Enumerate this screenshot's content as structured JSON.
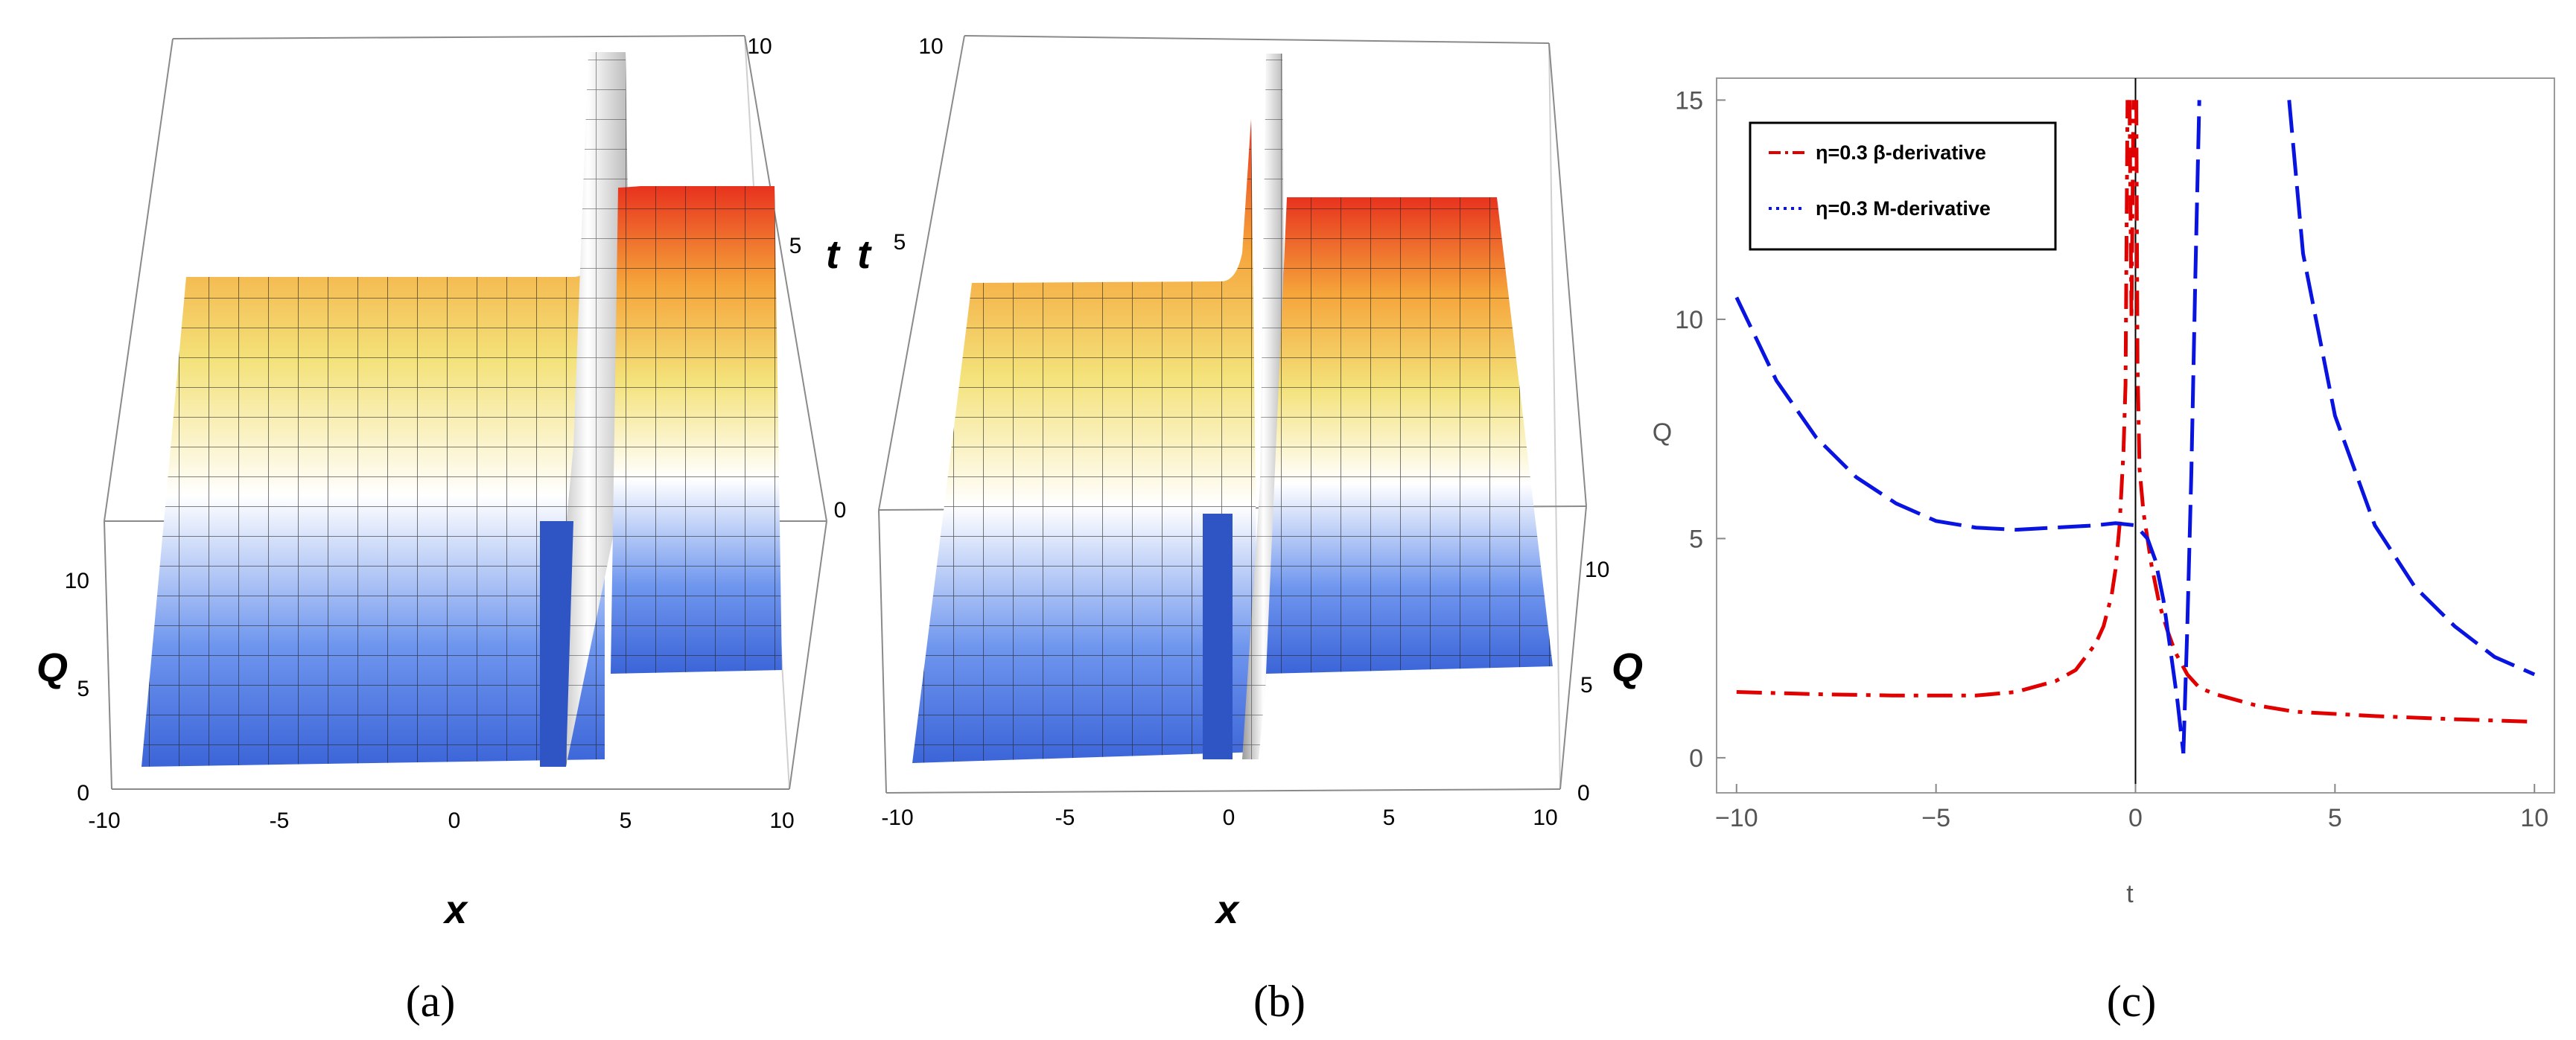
{
  "figure": {
    "panel_labels": [
      "(a)",
      "(b)",
      "(c)"
    ]
  },
  "chart_data": [
    {
      "type": "surface",
      "title": "",
      "xlabel": "x",
      "ylabel": "t",
      "zlabel": "Q",
      "x_ticks": [
        "-10",
        "-5",
        "0",
        "5",
        "10"
      ],
      "t_ticks": [
        "0",
        "5",
        "10"
      ],
      "z_ticks": [
        "0",
        "5",
        "10"
      ],
      "xlim": [
        -10,
        10
      ],
      "tlim": [
        0,
        10
      ],
      "zlim": [
        0,
        12
      ],
      "colormap": [
        "#3b64d8",
        "#6f96ee",
        "#ffffff",
        "#f4e27a",
        "#f5a43a",
        "#e8321e"
      ]
    },
    {
      "type": "surface",
      "title": "",
      "xlabel": "x",
      "ylabel": "t",
      "zlabel": "Q",
      "x_ticks": [
        "-10",
        "-5",
        "0",
        "5",
        "10"
      ],
      "t_ticks": [
        "5",
        "10"
      ],
      "z_ticks": [
        "0",
        "5",
        "10"
      ],
      "xlim": [
        -10,
        10
      ],
      "tlim": [
        0,
        10
      ],
      "zlim": [
        0,
        12
      ],
      "colormap": [
        "#3b64d8",
        "#6f96ee",
        "#ffffff",
        "#f4e27a",
        "#f5a43a",
        "#e8321e"
      ]
    },
    {
      "type": "line",
      "title": "",
      "xlabel": "t",
      "ylabel": "Q",
      "xlim": [
        -10.5,
        10.5
      ],
      "ylim": [
        -0.8,
        15.5
      ],
      "x_ticks": [
        -10,
        -5,
        0,
        5,
        10
      ],
      "y_ticks": [
        0,
        5,
        10,
        15
      ],
      "legend": "top-left",
      "series": [
        {
          "name": "η=0.3 β-derivative",
          "color": "#e00000",
          "style": "dash-dot",
          "segments": [
            {
              "x": [
                -10,
                -8,
                -6,
                -4,
                -3,
                -2,
                -1.5,
                -1,
                -0.8,
                -0.6,
                -0.5,
                -0.4,
                -0.3,
                -0.25,
                -0.2
              ],
              "y": [
                1.5,
                1.45,
                1.42,
                1.42,
                1.5,
                1.75,
                2.0,
                2.6,
                3.0,
                3.7,
                4.3,
                5.3,
                7.0,
                8.5,
                15
              ]
            },
            {
              "x": [
                -0.15,
                -0.1,
                -0.05
              ],
              "y": [
                15,
                10,
                15
              ]
            },
            {
              "x": [
                0.02,
                0.05,
                0.1,
                0.2,
                0.4,
                0.6,
                0.8,
                1.0,
                1.3,
                1.6,
                2.0,
                3.0,
                4.0,
                6.0,
                8.0,
                10.0
              ],
              "y": [
                15,
                9.0,
                6.6,
                5.6,
                4.4,
                3.5,
                2.9,
                2.4,
                1.9,
                1.6,
                1.45,
                1.2,
                1.05,
                0.95,
                0.88,
                0.82
              ]
            }
          ]
        },
        {
          "name": "η=0.3 M-derivative",
          "color": "#0a14e0",
          "style": "dotted",
          "segments": [
            {
              "x": [
                -10,
                -9,
                -8,
                -7,
                -6,
                -5,
                -4,
                -3,
                -2,
                -1,
                -0.5,
                0,
                0.3,
                0.5,
                0.7,
                0.9,
                1.05,
                1.15,
                1.2
              ],
              "y": [
                10.5,
                8.6,
                7.3,
                6.4,
                5.8,
                5.4,
                5.25,
                5.2,
                5.25,
                5.3,
                5.35,
                5.3,
                5.0,
                4.5,
                3.6,
                2.3,
                1.3,
                0.5,
                0.1
              ]
            },
            {
              "x": [
                1.2,
                1.3,
                1.4,
                1.5,
                1.6
              ],
              "y": [
                0.1,
                3.0,
                6.5,
                11.0,
                15
              ]
            },
            {
              "x": [
                3.85,
                4.2,
                5,
                6,
                7,
                8,
                9,
                10
              ],
              "y": [
                15,
                11.5,
                7.8,
                5.3,
                3.9,
                3.0,
                2.3,
                1.9
              ]
            }
          ]
        }
      ]
    }
  ]
}
